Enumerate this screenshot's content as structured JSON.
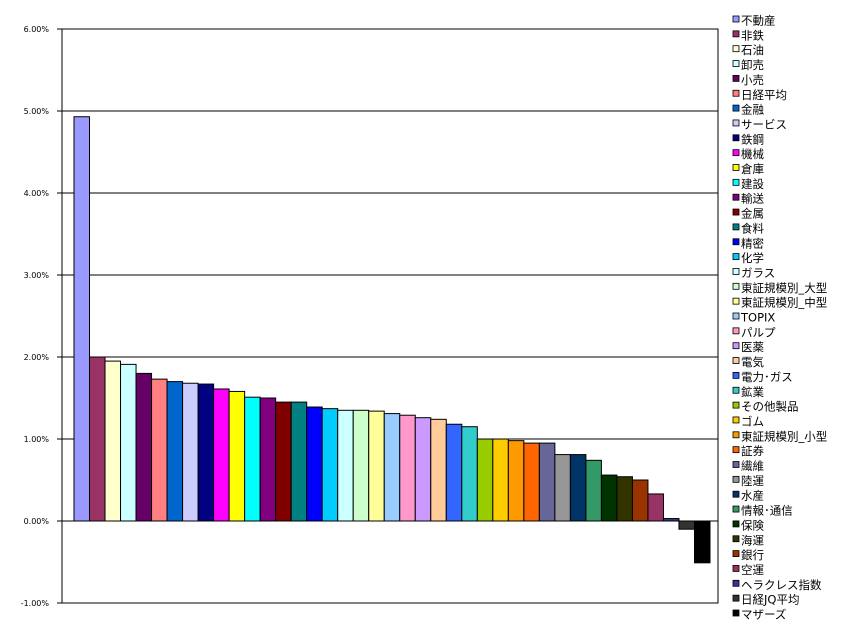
{
  "chart_data": {
    "type": "bar",
    "title": "",
    "xlabel": "",
    "ylabel": "",
    "ylim": [
      -0.01,
      0.06
    ],
    "y_ticks": [
      "-1.00%",
      "0.00%",
      "1.00%",
      "2.00%",
      "3.00%",
      "4.00%",
      "5.00%",
      "6.00%"
    ],
    "y_tick_values": [
      -0.01,
      0,
      0.01,
      0.02,
      0.03,
      0.04,
      0.05,
      0.06
    ],
    "grid": "horizontal major",
    "legend_position": "right",
    "series": [
      {
        "name": "不動産",
        "value": 0.0493,
        "color": "#9999FF"
      },
      {
        "name": "非鉄",
        "value": 0.02,
        "color": "#993366"
      },
      {
        "name": "石油",
        "value": 0.0195,
        "color": "#FFFFCC"
      },
      {
        "name": "卸売",
        "value": 0.0191,
        "color": "#CCFFFF"
      },
      {
        "name": "小売",
        "value": 0.018,
        "color": "#660066"
      },
      {
        "name": "日経平均",
        "value": 0.0173,
        "color": "#FF8080"
      },
      {
        "name": "金融",
        "value": 0.017,
        "color": "#0066CC"
      },
      {
        "name": "サービス",
        "value": 0.0168,
        "color": "#CCCCFF"
      },
      {
        "name": "鉄鋼",
        "value": 0.0167,
        "color": "#000080"
      },
      {
        "name": "機械",
        "value": 0.0161,
        "color": "#FF00FF"
      },
      {
        "name": "倉庫",
        "value": 0.0158,
        "color": "#FFFF00"
      },
      {
        "name": "建設",
        "value": 0.0151,
        "color": "#00FFFF"
      },
      {
        "name": "輸送",
        "value": 0.015,
        "color": "#800080"
      },
      {
        "name": "金属",
        "value": 0.0145,
        "color": "#800000"
      },
      {
        "name": "食料",
        "value": 0.0145,
        "color": "#008080"
      },
      {
        "name": "精密",
        "value": 0.0139,
        "color": "#0000FF"
      },
      {
        "name": "化学",
        "value": 0.0137,
        "color": "#00CCFF"
      },
      {
        "name": "ガラス",
        "value": 0.0135,
        "color": "#CCFFFF"
      },
      {
        "name": "東証規模別_大型",
        "value": 0.0135,
        "color": "#CCFFCC"
      },
      {
        "name": "東証規模別_中型",
        "value": 0.0134,
        "color": "#FFFF99"
      },
      {
        "name": "TOPIX",
        "value": 0.0131,
        "color": "#99CCFF"
      },
      {
        "name": "パルプ",
        "value": 0.0129,
        "color": "#FF99CC"
      },
      {
        "name": "医薬",
        "value": 0.0126,
        "color": "#CC99FF"
      },
      {
        "name": "電気",
        "value": 0.0124,
        "color": "#FFCC99"
      },
      {
        "name": "電力･ガス",
        "value": 0.0118,
        "color": "#3366FF"
      },
      {
        "name": "鉱業",
        "value": 0.0115,
        "color": "#33CCCC"
      },
      {
        "name": "その他製品",
        "value": 0.01,
        "color": "#99CC00"
      },
      {
        "name": "ゴム",
        "value": 0.01,
        "color": "#FFCC00"
      },
      {
        "name": "東証規模別_小型",
        "value": 0.0098,
        "color": "#FF9900"
      },
      {
        "name": "証券",
        "value": 0.0095,
        "color": "#FF6600"
      },
      {
        "name": "繊維",
        "value": 0.0095,
        "color": "#666699"
      },
      {
        "name": "陸運",
        "value": 0.0081,
        "color": "#969696"
      },
      {
        "name": "水産",
        "value": 0.0081,
        "color": "#003366"
      },
      {
        "name": "情報･通信",
        "value": 0.0074,
        "color": "#339966"
      },
      {
        "name": "保険",
        "value": 0.0056,
        "color": "#003300"
      },
      {
        "name": "海運",
        "value": 0.0054,
        "color": "#333300"
      },
      {
        "name": "銀行",
        "value": 0.005,
        "color": "#993300"
      },
      {
        "name": "空運",
        "value": 0.0033,
        "color": "#993366"
      },
      {
        "name": "ヘラクレス指数",
        "value": 0.0003,
        "color": "#333399"
      },
      {
        "name": "日経JQ平均",
        "value": -0.001,
        "color": "#333333"
      },
      {
        "name": "マザーズ",
        "value": -0.0051,
        "color": "#000000"
      }
    ]
  }
}
